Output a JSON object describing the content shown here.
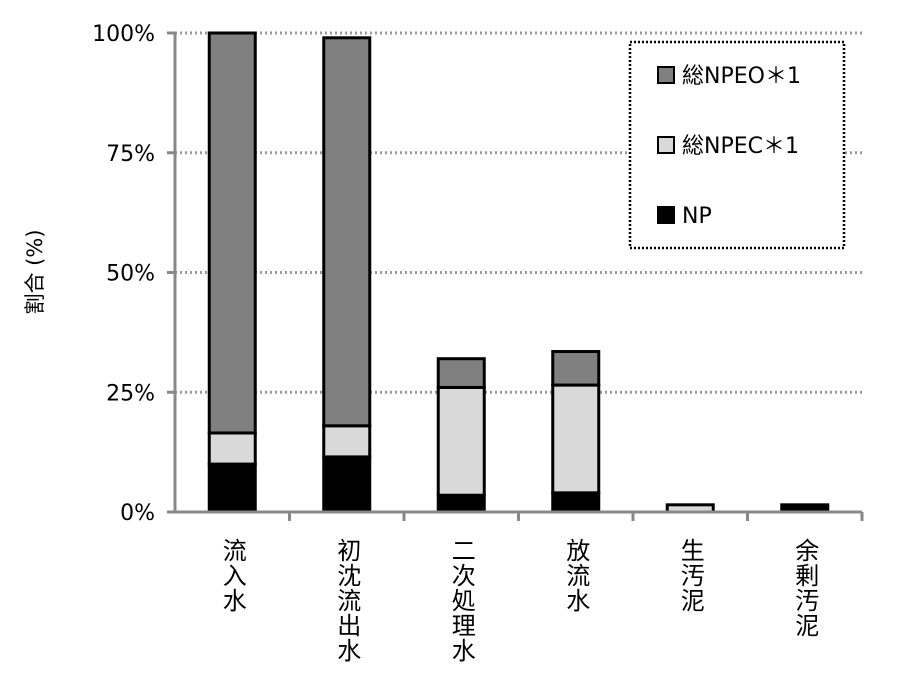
{
  "chart_data": {
    "type": "bar",
    "stacked": true,
    "ylabel": "割合 (%)",
    "ylim": [
      0,
      100
    ],
    "yticks": [
      0,
      25,
      50,
      75,
      100
    ],
    "ytick_labels": [
      "0%",
      "25%",
      "50%",
      "75%",
      "100%"
    ],
    "grid": true,
    "categories": [
      "流入水",
      "初沈流出水",
      "二次処理水",
      "放流水",
      "生汚泥",
      "余剰汚泥"
    ],
    "series": [
      {
        "name": "NP",
        "color": "#000000",
        "values": [
          10,
          11.5,
          3.5,
          4,
          0,
          1.5
        ]
      },
      {
        "name": "総NPEC＊1",
        "color": "#d9d9d9",
        "values": [
          6.5,
          6.5,
          22.5,
          22.5,
          1.5,
          0
        ]
      },
      {
        "name": "総NPEO＊1",
        "color": "#808080",
        "values": [
          83.5,
          81,
          6,
          7,
          0,
          0
        ]
      }
    ],
    "legend": {
      "position": "top-right",
      "entries": [
        "総NPEO＊1",
        "総NPEC＊1",
        "NP"
      ]
    }
  }
}
